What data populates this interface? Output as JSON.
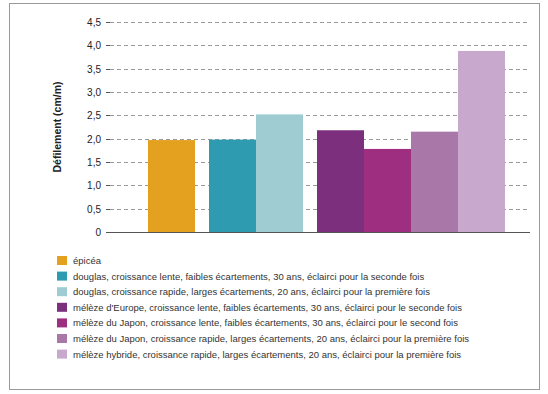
{
  "chart_data": {
    "type": "bar",
    "y_label": "Défilement (cm/m)",
    "categories": [
      null,
      null,
      null
    ],
    "series": [
      {
        "name": "épicéa",
        "color": "#e3a11f",
        "values": [
          1.97,
          null,
          null
        ]
      },
      {
        "name": "douglas, croissance lente, faibles écartements, 30 ans, éclairci pour la seconde fois",
        "color": "#2e9bb0",
        "values": [
          null,
          1.98,
          null
        ]
      },
      {
        "name": "douglas, croissance rapide, larges écartements, 20 ans, éclairci pour la première fois",
        "color": "#9fccd3",
        "values": [
          null,
          2.52,
          null
        ]
      },
      {
        "name": "mélèze d'Europe, croissance lente, faibles écartements, 30 ans, éclairci pour le seconde fois",
        "color": "#7b2f7d",
        "values": [
          null,
          null,
          2.18
        ]
      },
      {
        "name": "mélèze du Japon, croissance lente, faibles écartements, 30 ans, éclairci pour le second fois",
        "color": "#9e2e80",
        "values": [
          null,
          null,
          1.78
        ]
      },
      {
        "name": "mélèze du Japon, croissance rapide, larges écartements, 20 ans, éclairci pour la première fois",
        "color": "#a977a8",
        "values": [
          null,
          null,
          2.15
        ]
      },
      {
        "name": "mélèze hybride, croissance rapide, larges écartements, 20 ans, éclairci pour la première fois",
        "color": "#c8a8cd",
        "values": [
          null,
          null,
          3.88
        ]
      }
    ],
    "ylim": [
      0,
      4.5
    ],
    "yticks": [
      0,
      {
        "value": 0.5,
        "label": "0,5"
      },
      {
        "value": 1.0,
        "label": "1,0"
      },
      {
        "value": 1.5,
        "label": "1,5"
      },
      {
        "value": 2.0,
        "label": "2,0"
      },
      {
        "value": 2.5,
        "label": "2,5"
      },
      {
        "value": 3.0,
        "label": "3,0"
      },
      {
        "value": 3.5,
        "label": "3,5"
      },
      {
        "value": 4.0,
        "label": "4,0"
      },
      {
        "value": 4.5,
        "label": "4,5"
      }
    ],
    "grid": true,
    "legend": "bottom",
    "tick_labels": "y"
  }
}
